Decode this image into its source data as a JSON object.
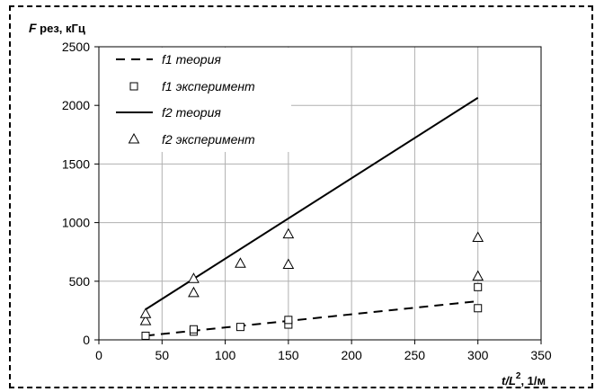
{
  "chart_data": {
    "type": "scatter",
    "ylabel_main": "F",
    "ylabel_sub": " рез, кГц",
    "xlabel_main": "t/L",
    "xlabel_sup": "2",
    "xlabel_unit": ", 1/м",
    "xlim": [
      0,
      350
    ],
    "ylim": [
      0,
      2500
    ],
    "xticks": [
      0,
      50,
      100,
      150,
      200,
      250,
      300,
      350
    ],
    "yticks": [
      0,
      500,
      1000,
      1500,
      2000,
      2500
    ],
    "grid": true,
    "legend_position": "top-left",
    "series": [
      {
        "name": "f1 теория",
        "kind": "line",
        "dash": true,
        "points": [
          [
            37,
            35
          ],
          [
            300,
            330
          ]
        ]
      },
      {
        "name": "f1 эксперимент",
        "kind": "markers",
        "marker": "square",
        "points": [
          [
            37,
            35
          ],
          [
            75,
            70
          ],
          [
            75,
            90
          ],
          [
            112,
            110
          ],
          [
            150,
            130
          ],
          [
            150,
            170
          ],
          [
            300,
            270
          ],
          [
            300,
            450
          ]
        ]
      },
      {
        "name": "f2 теория",
        "kind": "line",
        "dash": false,
        "points": [
          [
            37,
            260
          ],
          [
            300,
            2065
          ]
        ]
      },
      {
        "name": "f2 эксперимент",
        "kind": "markers",
        "marker": "triangle",
        "points": [
          [
            37,
            160
          ],
          [
            37,
            220
          ],
          [
            75,
            400
          ],
          [
            75,
            520
          ],
          [
            112,
            650
          ],
          [
            150,
            640
          ],
          [
            150,
            900
          ],
          [
            300,
            540
          ],
          [
            300,
            870
          ]
        ]
      }
    ]
  }
}
